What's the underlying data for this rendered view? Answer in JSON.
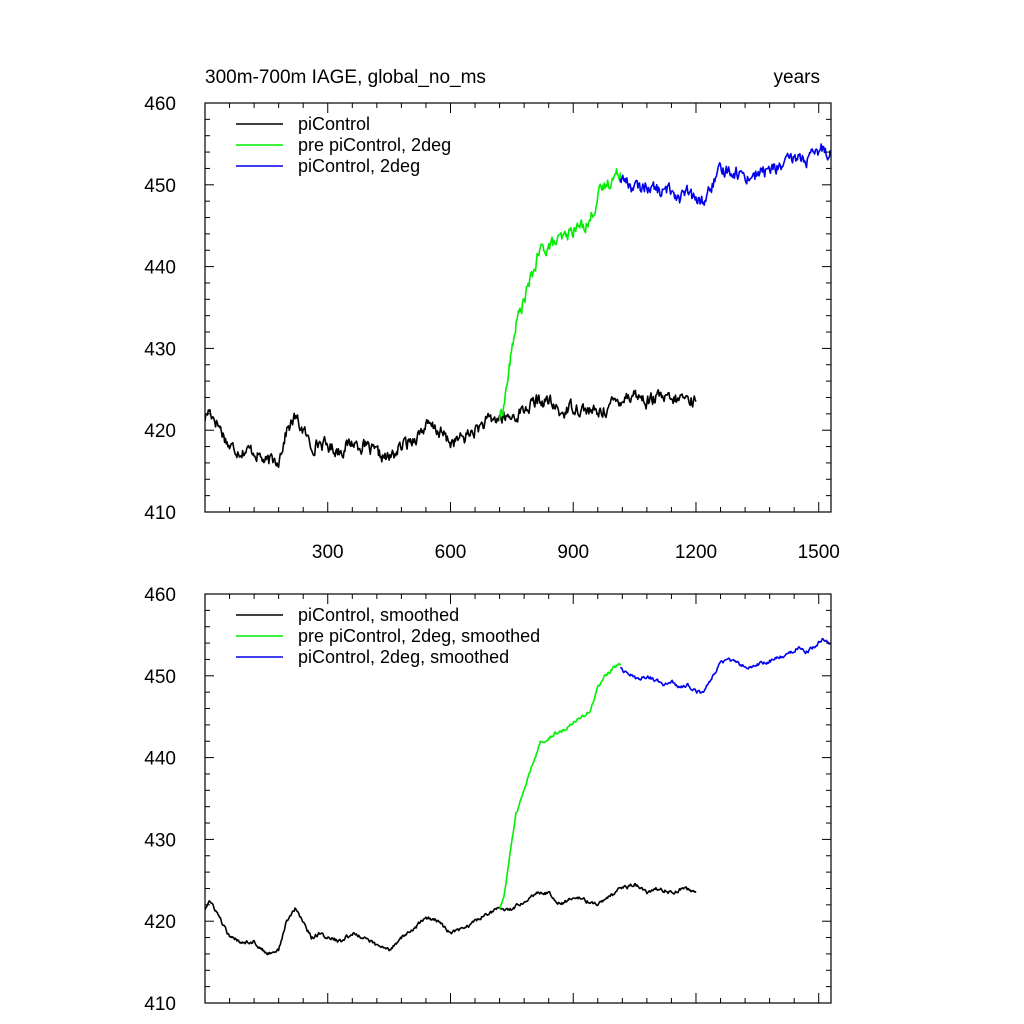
{
  "figure": {
    "title_left": "300m-700m IAGE, global_no_ms",
    "title_right": "years"
  },
  "chart_data": [
    {
      "type": "line",
      "panel": "top",
      "xlim": [
        0,
        1530
      ],
      "ylim": [
        410,
        460
      ],
      "x_ticks": [
        300,
        600,
        900,
        1200,
        1500
      ],
      "y_ticks": [
        410,
        420,
        430,
        440,
        450,
        460
      ],
      "x_tick_labels_shown": true,
      "legend_position": "top-left",
      "noise_amplitude": 0.7,
      "series": [
        {
          "name": "piControl",
          "color": "#000000",
          "x": [
            0,
            10,
            30,
            60,
            90,
            120,
            150,
            180,
            200,
            220,
            240,
            260,
            280,
            300,
            330,
            360,
            390,
            420,
            450,
            480,
            510,
            540,
            570,
            600,
            630,
            660,
            690,
            720,
            750,
            780,
            810,
            840,
            870,
            900,
            930,
            960,
            990,
            1020,
            1050,
            1080,
            1110,
            1140,
            1170,
            1200
          ],
          "values": [
            421.5,
            422.5,
            421,
            418,
            417.5,
            417.5,
            416,
            416.5,
            420,
            421.5,
            420,
            418,
            418.5,
            418,
            417.5,
            418.5,
            418,
            417,
            416.5,
            418,
            419,
            420.5,
            420,
            418.5,
            419,
            420,
            421,
            421.5,
            421.5,
            422.5,
            423.5,
            423.5,
            422,
            423,
            422.5,
            422,
            423,
            424,
            424.5,
            423.5,
            424,
            423.5,
            424,
            423.5
          ]
        },
        {
          "name": "pre piControl, 2deg",
          "color": "#00ee00",
          "x": [
            720,
            730,
            745,
            760,
            780,
            800,
            820,
            840,
            860,
            880,
            900,
            920,
            940,
            960,
            980,
            1000,
            1015
          ],
          "values": [
            421.5,
            423,
            428,
            433,
            436,
            439,
            442,
            442.5,
            443,
            443.5,
            444.5,
            445,
            445.5,
            448.5,
            450,
            451,
            451.5
          ]
        },
        {
          "name": "piControl, 2deg",
          "color": "#0000ee",
          "x": [
            1015,
            1040,
            1060,
            1080,
            1100,
            1120,
            1140,
            1160,
            1180,
            1200,
            1220,
            1240,
            1260,
            1280,
            1300,
            1330,
            1360,
            1390,
            1420,
            1450,
            1470,
            1490,
            1510,
            1530
          ],
          "values": [
            451,
            450,
            449.5,
            450,
            449.5,
            449,
            449.5,
            448.5,
            449,
            448,
            448,
            450,
            451.5,
            452,
            451.5,
            451,
            451.5,
            452,
            452.5,
            453.5,
            453,
            453.5,
            454.5,
            454
          ]
        }
      ]
    },
    {
      "type": "line",
      "panel": "bottom",
      "xlim": [
        0,
        1530
      ],
      "ylim": [
        410,
        460
      ],
      "x_ticks": [
        300,
        600,
        900,
        1200,
        1500
      ],
      "y_ticks": [
        410,
        420,
        430,
        440,
        450,
        460
      ],
      "x_tick_labels_shown": false,
      "legend_position": "top-left",
      "noise_amplitude": 0.2,
      "series": [
        {
          "name": "piControl, smoothed",
          "color": "#000000",
          "x": [
            0,
            10,
            30,
            60,
            90,
            120,
            150,
            180,
            200,
            220,
            240,
            260,
            280,
            300,
            330,
            360,
            390,
            420,
            450,
            480,
            510,
            540,
            570,
            600,
            630,
            660,
            690,
            720,
            750,
            780,
            810,
            840,
            870,
            900,
            930,
            960,
            990,
            1020,
            1050,
            1080,
            1110,
            1140,
            1170,
            1200
          ],
          "values": [
            421.5,
            422.5,
            421,
            418,
            417.5,
            417.5,
            416,
            416.5,
            420,
            421.5,
            420,
            418,
            418.5,
            418,
            417.5,
            418.5,
            418,
            417,
            416.5,
            418,
            419,
            420.5,
            420,
            418.5,
            419,
            420,
            421,
            421.5,
            421.5,
            422.5,
            423.5,
            423.5,
            422,
            423,
            422.5,
            422,
            423,
            424,
            424.5,
            423.5,
            424,
            423.5,
            424,
            423.5
          ]
        },
        {
          "name": "pre piControl, 2deg, smoothed",
          "color": "#00ee00",
          "x": [
            720,
            730,
            745,
            760,
            780,
            800,
            820,
            840,
            860,
            880,
            900,
            920,
            940,
            960,
            980,
            1000,
            1015
          ],
          "values": [
            421.5,
            423,
            428,
            433,
            436,
            439,
            442,
            442.5,
            443,
            443.5,
            444.5,
            445,
            445.5,
            448.5,
            450,
            451,
            451.5
          ]
        },
        {
          "name": "piControl, 2deg, smoothed",
          "color": "#0000ee",
          "x": [
            1015,
            1040,
            1060,
            1080,
            1100,
            1120,
            1140,
            1160,
            1180,
            1200,
            1220,
            1240,
            1260,
            1280,
            1300,
            1330,
            1360,
            1390,
            1420,
            1450,
            1470,
            1490,
            1510,
            1530
          ],
          "values": [
            451,
            450,
            449.5,
            450,
            449.5,
            449,
            449.5,
            448.5,
            449,
            448,
            448,
            450,
            451.5,
            452,
            451.5,
            451,
            451.5,
            452,
            452.5,
            453.5,
            453,
            453.5,
            454.5,
            454
          ]
        }
      ]
    }
  ]
}
